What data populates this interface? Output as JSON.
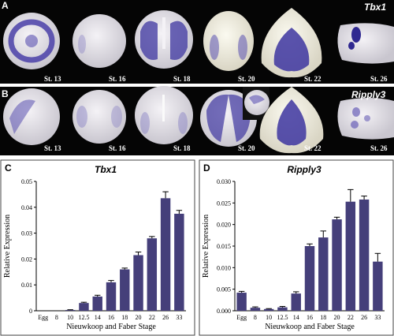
{
  "panels": {
    "A": {
      "letter": "A",
      "gene": "Tbx1",
      "stages": [
        "St. 13",
        "St. 16",
        "St. 18",
        "St. 20",
        "St. 22",
        "St. 26"
      ]
    },
    "B": {
      "letter": "B",
      "gene": "Ripply3",
      "stages": [
        "St. 13",
        "St. 16",
        "St. 18",
        "St. 20",
        "St. 22",
        "St. 26"
      ]
    }
  },
  "colors": {
    "background_strip": "#050505",
    "stain": "#3d35a0",
    "embryo": "#e6e2e8",
    "bar": "#453f7a",
    "frame": "#444444"
  },
  "chart_data": [
    {
      "panel": "C",
      "type": "bar",
      "title": "Tbx1",
      "xlabel": "Nieuwkoop and Faber Stage",
      "ylabel": "Relative Expression",
      "categories": [
        "Egg",
        "8",
        "10",
        "12.5",
        "14",
        "16",
        "18",
        "20",
        "22",
        "26",
        "33"
      ],
      "values": [
        0.0,
        0.0,
        0.0003,
        0.003,
        0.0055,
        0.011,
        0.016,
        0.0215,
        0.028,
        0.0435,
        0.0375
      ],
      "errors": [
        0.0,
        0.0,
        0.0001,
        0.0003,
        0.0005,
        0.0007,
        0.0005,
        0.0012,
        0.0007,
        0.0025,
        0.0013
      ],
      "ylim": [
        0,
        0.05
      ],
      "yticks": [
        "0",
        "0.01",
        "0.02",
        "0.03",
        "0.04",
        "0.05"
      ],
      "grid": false
    },
    {
      "panel": "D",
      "type": "bar",
      "title": "Ripply3",
      "xlabel": "Nieuwkoop and Faber Stage",
      "ylabel": "Relative Expression",
      "categories": [
        "Egg",
        "8",
        "10",
        "12.5",
        "14",
        "16",
        "18",
        "20",
        "22",
        "26",
        "33"
      ],
      "values": [
        0.0042,
        0.0007,
        0.0004,
        0.0008,
        0.004,
        0.015,
        0.017,
        0.0212,
        0.0253,
        0.0258,
        0.0114
      ],
      "errors": [
        0.0003,
        0.0002,
        0.0001,
        0.0002,
        0.0004,
        0.0005,
        0.0015,
        0.0005,
        0.0028,
        0.0008,
        0.0019
      ],
      "ylim": [
        0,
        0.03
      ],
      "yticks": [
        "0.000",
        "0.005",
        "0.010",
        "0.015",
        "0.020",
        "0.025",
        "0.030"
      ],
      "grid": false
    }
  ]
}
